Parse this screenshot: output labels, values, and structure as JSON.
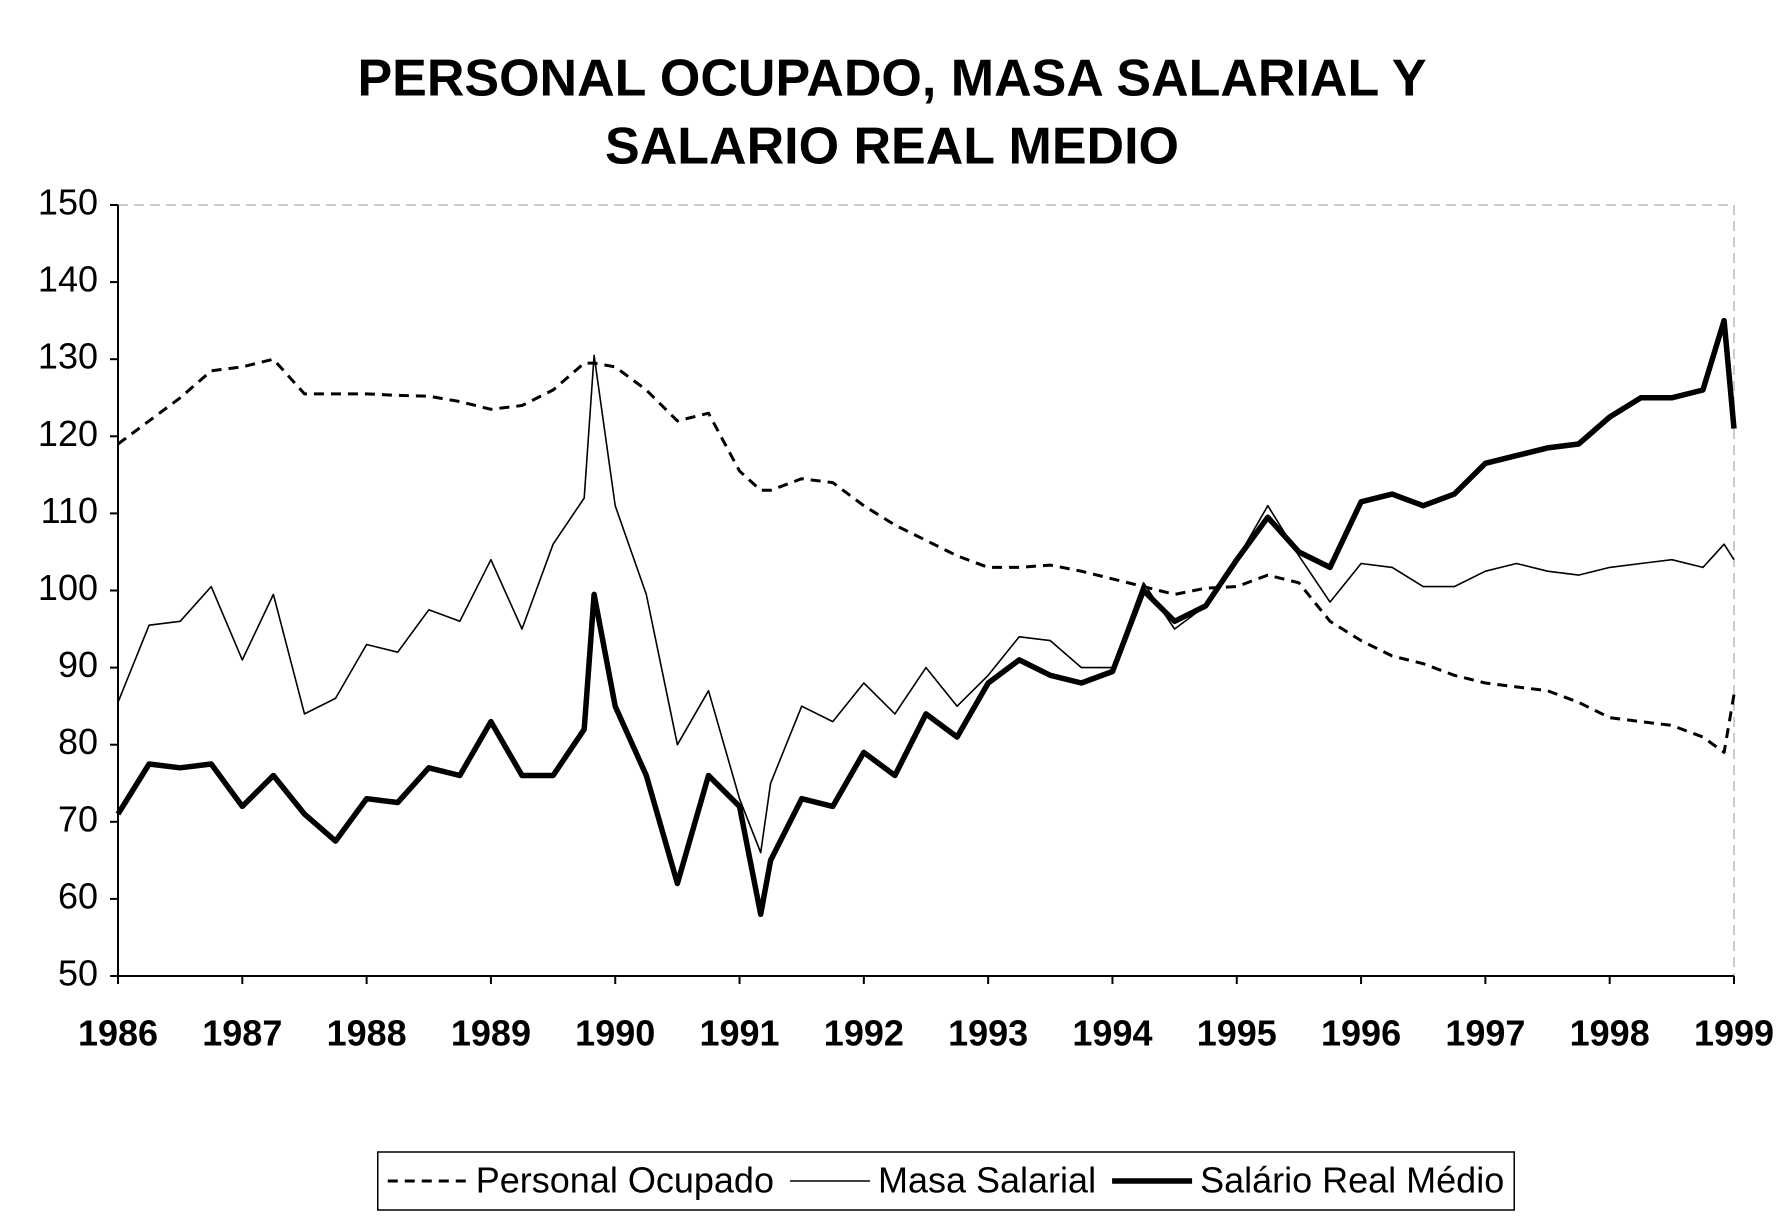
{
  "chart_data": {
    "type": "line",
    "title": [
      "PERSONAL OCUPADO, MASA SALARIAL Y",
      "SALARIO REAL MEDIO"
    ],
    "x": [
      1986,
      1986.25,
      1986.5,
      1986.75,
      1987,
      1987.25,
      1987.5,
      1987.75,
      1988,
      1988.25,
      1988.5,
      1988.75,
      1989,
      1989.25,
      1989.5,
      1989.75,
      1989.83,
      1990,
      1990.25,
      1990.5,
      1990.75,
      1991,
      1991.17,
      1991.25,
      1991.5,
      1991.75,
      1992,
      1992.25,
      1992.5,
      1992.75,
      1993,
      1993.25,
      1993.5,
      1993.75,
      1994,
      1994.25,
      1994.5,
      1994.75,
      1995,
      1995.25,
      1995.5,
      1995.75,
      1996,
      1996.25,
      1996.5,
      1996.75,
      1997,
      1997.25,
      1997.5,
      1997.75,
      1998,
      1998.25,
      1998.5,
      1998.75,
      1998.92,
      1999
    ],
    "series": [
      {
        "name": "Personal Ocupado",
        "color": "#000000",
        "style": "dashed",
        "values": [
          119,
          122,
          125,
          128.5,
          129,
          130,
          125.5,
          125.5,
          125.5,
          125.3,
          125.2,
          124.5,
          123.5,
          124,
          126,
          129.5,
          129.5,
          129,
          126,
          122,
          123,
          115.5,
          113,
          113,
          114.5,
          114,
          111,
          108.5,
          106.5,
          104.5,
          103,
          103,
          103.3,
          102.5,
          101.5,
          100.5,
          99.5,
          100.3,
          100.5,
          102,
          101,
          96,
          93.5,
          91.5,
          90.5,
          89,
          88,
          87.5,
          87,
          85.5,
          83.5,
          83,
          82.5,
          81,
          79,
          86.5
        ]
      },
      {
        "name": "Masa Salarial",
        "color": "#000000",
        "style": "thin",
        "values": [
          85.5,
          95.5,
          96,
          100.5,
          91,
          99.5,
          84,
          86,
          93,
          92,
          97.5,
          96,
          104,
          95,
          106,
          112,
          130.5,
          111,
          99.5,
          80,
          87,
          73,
          66,
          75,
          85,
          83,
          88,
          84,
          90,
          85,
          89,
          94,
          93.5,
          90,
          90,
          101,
          95,
          98,
          104,
          111,
          104.5,
          98.5,
          103.5,
          103,
          100.5,
          100.5,
          102.5,
          103.5,
          102.5,
          102,
          103,
          103.5,
          104,
          103,
          106,
          104
        ]
      },
      {
        "name": "Salário Real Médio",
        "color": "#000000",
        "style": "thick",
        "values": [
          71,
          77.5,
          77,
          77.5,
          72,
          76,
          71,
          67.5,
          73,
          72.5,
          77,
          76,
          83,
          76,
          76,
          82,
          99.5,
          85,
          76,
          62,
          76,
          72,
          58,
          65,
          73,
          72,
          79,
          76,
          84,
          81,
          88,
          91,
          89,
          88,
          89.5,
          100,
          96,
          98,
          104,
          109.5,
          105,
          103,
          111.5,
          112.5,
          111,
          112.5,
          116.5,
          117.5,
          118.5,
          119,
          122.5,
          125,
          125,
          126,
          135,
          121
        ]
      }
    ],
    "xlim": [
      1986,
      1999
    ],
    "xticks": [
      1986,
      1987,
      1988,
      1989,
      1990,
      1991,
      1992,
      1993,
      1994,
      1995,
      1996,
      1997,
      1998,
      1999
    ],
    "ylim": [
      50,
      150
    ],
    "yticks": [
      50,
      60,
      70,
      80,
      90,
      100,
      110,
      120,
      130,
      140,
      150
    ],
    "grid": false,
    "legend": "bottom"
  }
}
